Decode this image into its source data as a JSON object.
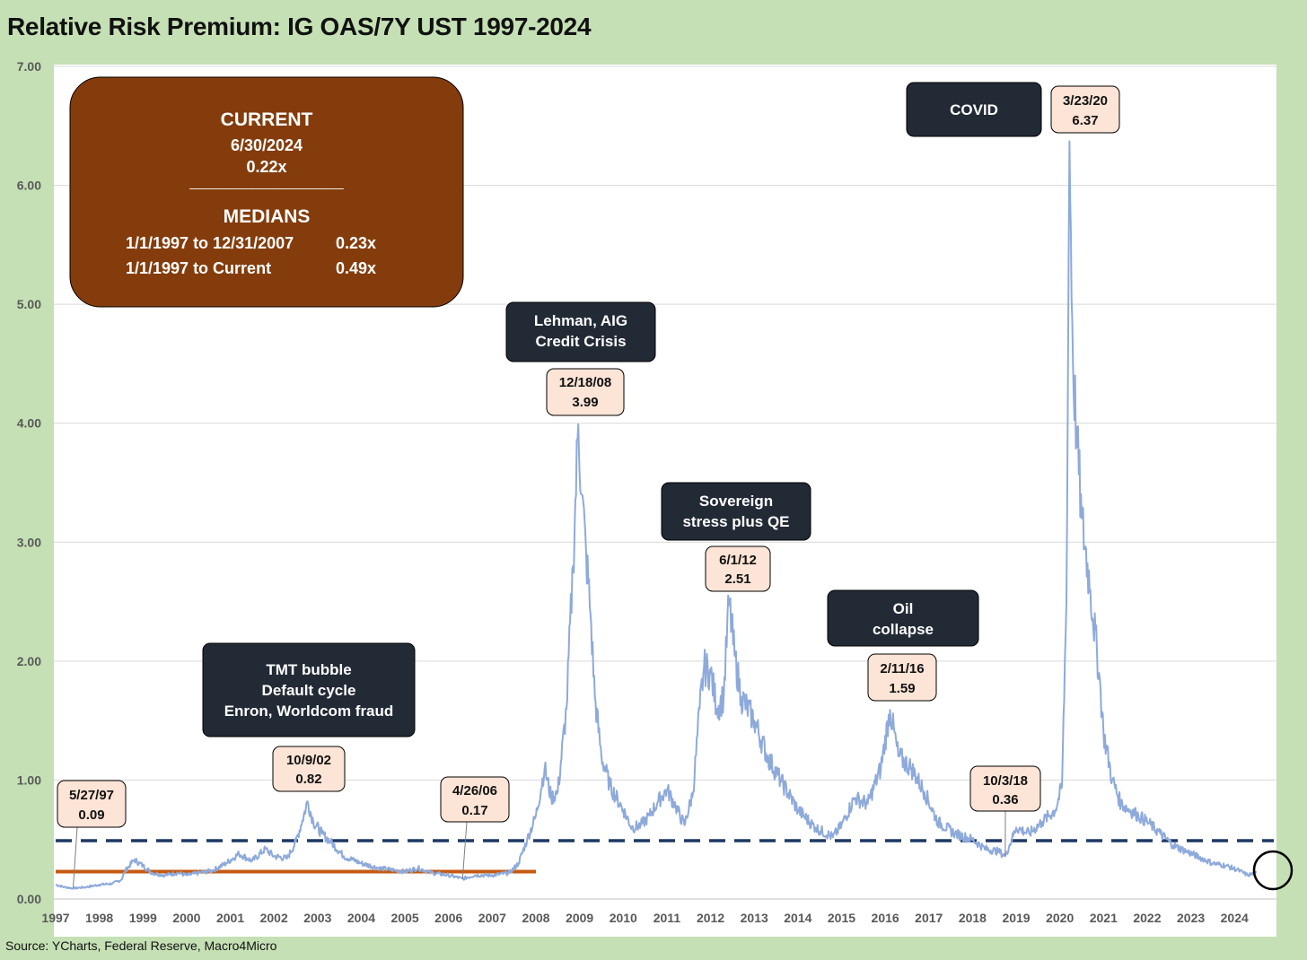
{
  "title": "Relative Risk Premium: IG OAS/7Y UST 1997-2024",
  "source": "Source: YCharts, Federal Reserve, Macro4Micro",
  "colors": {
    "frame": "#c5e0b4",
    "series": "#8eaadb",
    "median_full": "#1f3864",
    "median_pre2008": "#c55a11",
    "info_box": "#843c0c",
    "event_box": "#222a35",
    "peak_box": "#fce4d6"
  },
  "info_box": {
    "current_title": "CURRENT",
    "current_date": "6/30/2024",
    "current_value": "0.22x",
    "divider": "______________________",
    "medians_title": "MEDIANS",
    "rows": [
      {
        "label": "1/1/1997 to 12/31/2007",
        "value": "0.23x"
      },
      {
        "label": "1/1/1997 to Current",
        "value": "0.49x"
      }
    ]
  },
  "chart_data": {
    "type": "line",
    "series_name": "",
    "ylim": [
      0,
      7
    ],
    "xlim": [
      1997.0,
      2024.9
    ],
    "y_ticks": [
      "0.00",
      "1.00",
      "2.00",
      "3.00",
      "4.00",
      "5.00",
      "6.00",
      "7.00"
    ],
    "x_ticks": [
      "1997",
      "1998",
      "1999",
      "2000",
      "2001",
      "2002",
      "2003",
      "2004",
      "2005",
      "2006",
      "2007",
      "2008",
      "2009",
      "2010",
      "2011",
      "2012",
      "2013",
      "2014",
      "2015",
      "2016",
      "2017",
      "2018",
      "2019",
      "2020",
      "2021",
      "2022",
      "2023",
      "2024"
    ],
    "grid": "horizontal",
    "reference_lines": [
      {
        "label": "1/1/1997 to Current median",
        "value": 0.49,
        "style": "dashed",
        "x_start": 1997.0,
        "x_end": 2024.9
      },
      {
        "label": "1/1/1997 to 12/31/2007 median",
        "value": 0.23,
        "style": "solid",
        "x_start": 1997.0,
        "x_end": 2008.0
      }
    ],
    "points": [
      [
        1997.0,
        0.12
      ],
      [
        1997.2,
        0.1
      ],
      [
        1997.4,
        0.09
      ],
      [
        1997.7,
        0.1
      ],
      [
        1998.0,
        0.12
      ],
      [
        1998.3,
        0.13
      ],
      [
        1998.5,
        0.16
      ],
      [
        1998.6,
        0.24
      ],
      [
        1998.8,
        0.33
      ],
      [
        1999.0,
        0.28
      ],
      [
        1999.2,
        0.22
      ],
      [
        1999.5,
        0.2
      ],
      [
        1999.8,
        0.22
      ],
      [
        2000.0,
        0.2
      ],
      [
        2000.3,
        0.22
      ],
      [
        2000.6,
        0.24
      ],
      [
        2000.9,
        0.3
      ],
      [
        2001.2,
        0.38
      ],
      [
        2001.5,
        0.32
      ],
      [
        2001.8,
        0.42
      ],
      [
        2002.0,
        0.36
      ],
      [
        2002.3,
        0.34
      ],
      [
        2002.5,
        0.48
      ],
      [
        2002.65,
        0.66
      ],
      [
        2002.77,
        0.82
      ],
      [
        2002.9,
        0.65
      ],
      [
        2003.1,
        0.55
      ],
      [
        2003.3,
        0.48
      ],
      [
        2003.6,
        0.36
      ],
      [
        2004.0,
        0.3
      ],
      [
        2004.4,
        0.26
      ],
      [
        2004.8,
        0.24
      ],
      [
        2005.0,
        0.23
      ],
      [
        2005.3,
        0.26
      ],
      [
        2005.6,
        0.22
      ],
      [
        2006.0,
        0.2
      ],
      [
        2006.32,
        0.17
      ],
      [
        2006.6,
        0.2
      ],
      [
        2007.0,
        0.2
      ],
      [
        2007.4,
        0.22
      ],
      [
        2007.6,
        0.3
      ],
      [
        2007.8,
        0.5
      ],
      [
        2008.0,
        0.7
      ],
      [
        2008.2,
        1.1
      ],
      [
        2008.35,
        0.85
      ],
      [
        2008.5,
        0.9
      ],
      [
        2008.7,
        1.6
      ],
      [
        2008.85,
        2.8
      ],
      [
        2008.97,
        3.99
      ],
      [
        2009.05,
        3.4
      ],
      [
        2009.15,
        2.9
      ],
      [
        2009.25,
        2.4
      ],
      [
        2009.35,
        1.7
      ],
      [
        2009.5,
        1.2
      ],
      [
        2009.7,
        0.95
      ],
      [
        2010.0,
        0.75
      ],
      [
        2010.2,
        0.6
      ],
      [
        2010.4,
        0.62
      ],
      [
        2010.6,
        0.7
      ],
      [
        2010.8,
        0.82
      ],
      [
        2011.0,
        0.92
      ],
      [
        2011.2,
        0.78
      ],
      [
        2011.4,
        0.62
      ],
      [
        2011.6,
        0.9
      ],
      [
        2011.75,
        1.6
      ],
      [
        2011.85,
        1.95
      ],
      [
        2012.0,
        1.9
      ],
      [
        2012.15,
        1.6
      ],
      [
        2012.3,
        1.7
      ],
      [
        2012.42,
        2.51
      ],
      [
        2012.55,
        2.05
      ],
      [
        2012.7,
        1.7
      ],
      [
        2013.0,
        1.5
      ],
      [
        2013.3,
        1.2
      ],
      [
        2013.6,
        1.0
      ],
      [
        2014.0,
        0.75
      ],
      [
        2014.4,
        0.6
      ],
      [
        2014.8,
        0.52
      ],
      [
        2015.0,
        0.62
      ],
      [
        2015.3,
        0.85
      ],
      [
        2015.6,
        0.8
      ],
      [
        2015.9,
        1.1
      ],
      [
        2016.11,
        1.59
      ],
      [
        2016.3,
        1.2
      ],
      [
        2016.6,
        1.1
      ],
      [
        2016.9,
        0.9
      ],
      [
        2017.2,
        0.65
      ],
      [
        2017.6,
        0.55
      ],
      [
        2018.0,
        0.5
      ],
      [
        2018.3,
        0.42
      ],
      [
        2018.6,
        0.4
      ],
      [
        2018.75,
        0.36
      ],
      [
        2019.0,
        0.6
      ],
      [
        2019.3,
        0.55
      ],
      [
        2019.6,
        0.65
      ],
      [
        2019.9,
        0.75
      ],
      [
        2020.05,
        0.95
      ],
      [
        2020.15,
        2.5
      ],
      [
        2020.22,
        6.37
      ],
      [
        2020.3,
        4.5
      ],
      [
        2020.4,
        3.8
      ],
      [
        2020.5,
        3.2
      ],
      [
        2020.7,
        2.6
      ],
      [
        2020.9,
        1.9
      ],
      [
        2021.0,
        1.4
      ],
      [
        2021.2,
        1.0
      ],
      [
        2021.4,
        0.8
      ],
      [
        2021.6,
        0.75
      ],
      [
        2021.8,
        0.7
      ],
      [
        2022.0,
        0.65
      ],
      [
        2022.3,
        0.55
      ],
      [
        2022.6,
        0.45
      ],
      [
        2022.9,
        0.4
      ],
      [
        2023.2,
        0.35
      ],
      [
        2023.5,
        0.3
      ],
      [
        2023.8,
        0.28
      ],
      [
        2024.1,
        0.24
      ],
      [
        2024.3,
        0.2
      ],
      [
        2024.5,
        0.22
      ]
    ],
    "peaks": [
      {
        "date": "5/27/97",
        "value": "0.09"
      },
      {
        "date": "10/9/02",
        "value": "0.82"
      },
      {
        "date": "4/26/06",
        "value": "0.17"
      },
      {
        "date": "12/18/08",
        "value": "3.99"
      },
      {
        "date": "6/1/12",
        "value": "2.51"
      },
      {
        "date": "2/11/16",
        "value": "1.59"
      },
      {
        "date": "10/3/18",
        "value": "0.36"
      },
      {
        "date": "3/23/20",
        "value": "6.37"
      }
    ],
    "events": [
      {
        "lines": [
          "TMT bubble",
          "Default cycle",
          "Enron, Worldcom fraud"
        ]
      },
      {
        "lines": [
          "Lehman, AIG",
          "Credit Crisis"
        ]
      },
      {
        "lines": [
          "Sovereign",
          "stress plus QE"
        ]
      },
      {
        "lines": [
          "Oil",
          "collapse"
        ]
      },
      {
        "lines": [
          "COVID"
        ]
      }
    ]
  }
}
